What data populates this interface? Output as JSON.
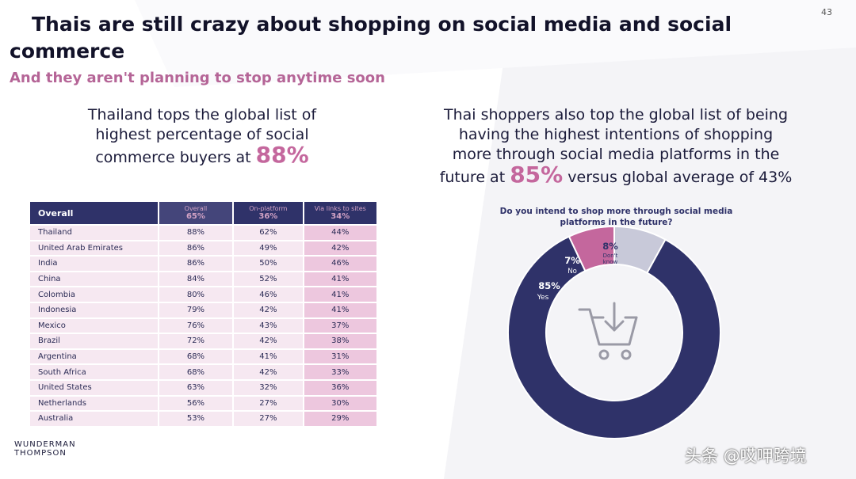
{
  "page_number": "43",
  "title_line1": "Thais are still crazy about shopping on social media and social",
  "title_line2": "commerce",
  "subtitle": "And they aren't planning to stop anytime soon",
  "left_heading": {
    "line1": "Thailand tops the global list of",
    "line2": "highest percentage of social",
    "line3_pre": "commerce buyers at ",
    "highlight": "88%"
  },
  "right_heading": {
    "line1": "Thai shoppers also top the global list of being",
    "line2": "having the highest intentions of shopping",
    "line3": "more through social media platforms in the",
    "line4_pre": "future at ",
    "highlight": "85%",
    "line4_post": " versus global average of 43%"
  },
  "colors": {
    "navy": "#2f3269",
    "pink": "#c4679d",
    "grey": "#c8c9d9",
    "row_light": "#f6e8f1",
    "row_dark": "#edc7de"
  },
  "chart_data": [
    {
      "type": "table",
      "columns": [
        {
          "label": "Overall"
        },
        {
          "label": "Overall",
          "value": "65%"
        },
        {
          "label": "On-platform",
          "value": "36%"
        },
        {
          "label": "Via links to sites",
          "value": "34%"
        }
      ],
      "rows": [
        [
          "Thailand",
          "88%",
          "62%",
          "44%"
        ],
        [
          "United Arab Emirates",
          "86%",
          "49%",
          "42%"
        ],
        [
          "India",
          "86%",
          "50%",
          "46%"
        ],
        [
          "China",
          "84%",
          "52%",
          "41%"
        ],
        [
          "Colombia",
          "80%",
          "46%",
          "41%"
        ],
        [
          "Indonesia",
          "79%",
          "42%",
          "41%"
        ],
        [
          "Mexico",
          "76%",
          "43%",
          "37%"
        ],
        [
          "Brazil",
          "72%",
          "42%",
          "38%"
        ],
        [
          "Argentina",
          "68%",
          "41%",
          "31%"
        ],
        [
          "South Africa",
          "68%",
          "42%",
          "33%"
        ],
        [
          "United States",
          "63%",
          "32%",
          "36%"
        ],
        [
          "Netherlands",
          "56%",
          "27%",
          "30%"
        ],
        [
          "Australia",
          "53%",
          "27%",
          "29%"
        ]
      ]
    },
    {
      "type": "pie",
      "variant": "donut",
      "title_line1": "Do you intend to shop more through social media",
      "title_line2": "platforms in the future?",
      "slices": [
        {
          "label": "Yes",
          "value": 85,
          "display": "85%",
          "color": "#2f3269"
        },
        {
          "label": "No",
          "value": 7,
          "display": "7%",
          "color": "#c4679d"
        },
        {
          "label_line1": "Don't",
          "label_line2": "know",
          "value": 8,
          "display": "8%",
          "color": "#c8c9d9"
        }
      ],
      "center_icon": "shopping-cart-download-icon"
    }
  ],
  "logo": {
    "line1": "WUNDERMAN",
    "line2": "THOMPSON"
  },
  "watermark": "头条 @哎呷跨境"
}
